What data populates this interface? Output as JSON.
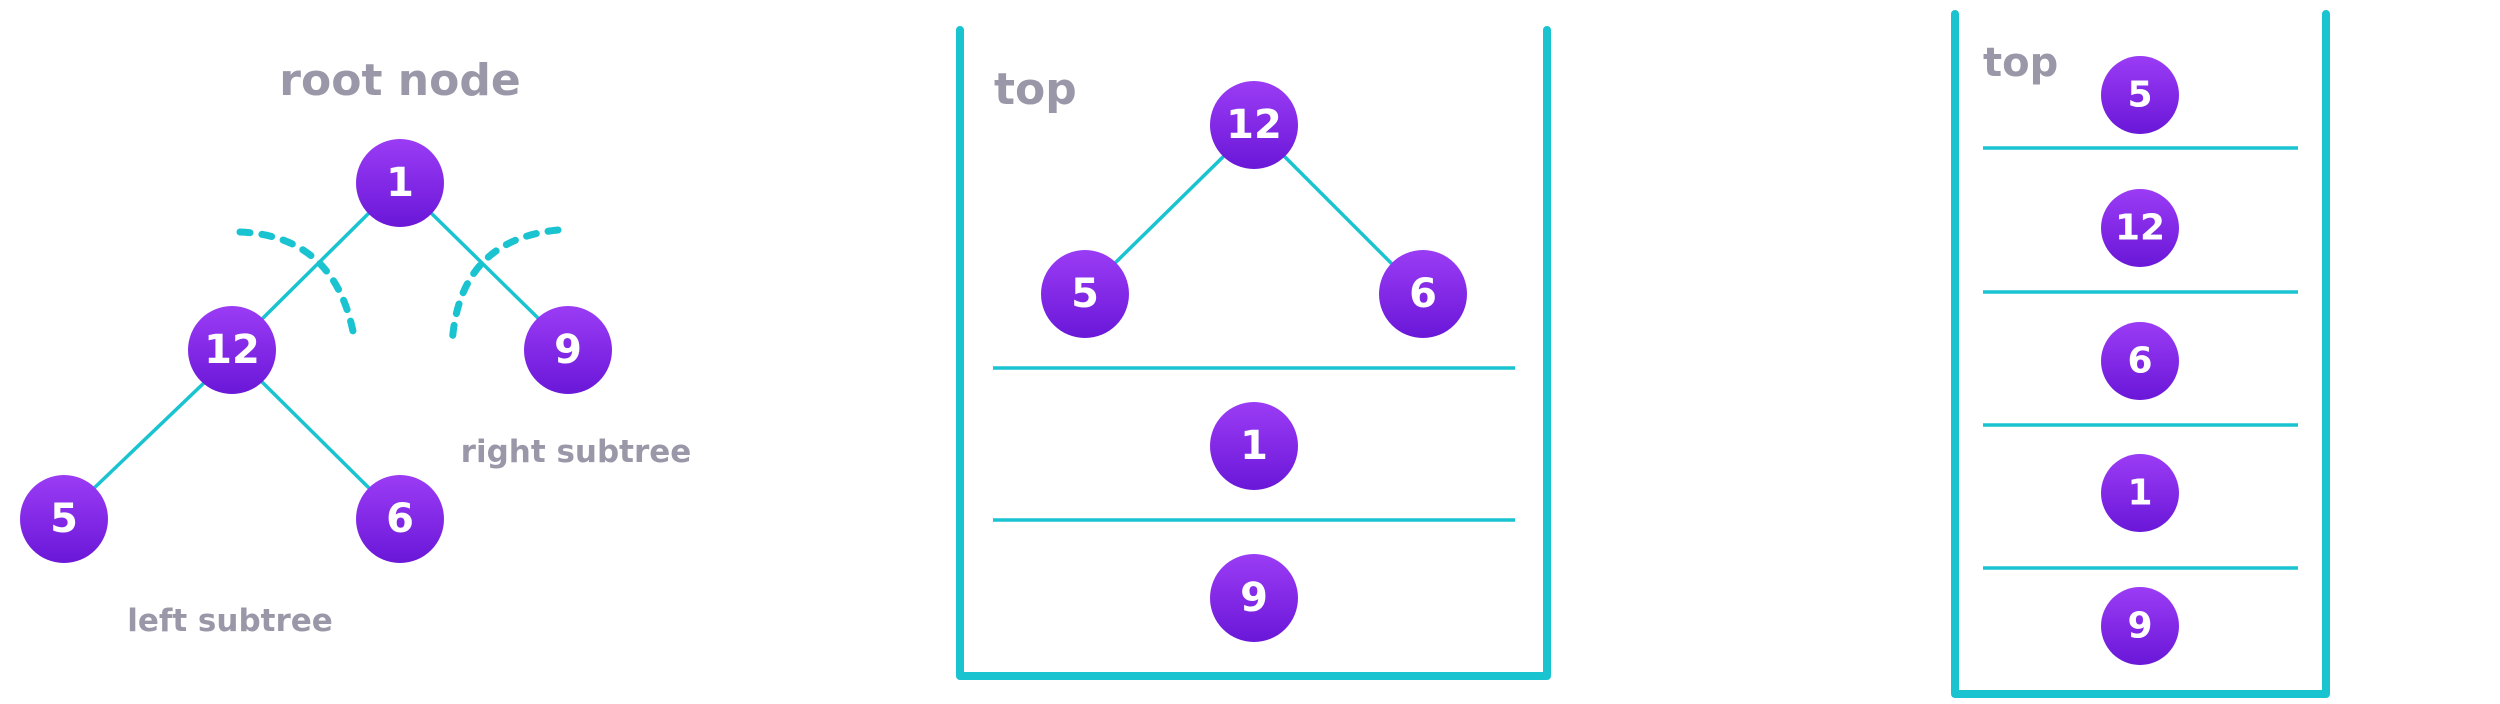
{
  "colors": {
    "node_top": "#9b3cf5",
    "node_bottom": "#6a17d8",
    "edge": "#19c3d0",
    "label": "#9a98a8"
  },
  "tree": {
    "title": "root node",
    "left_subtree_label": "left subtree",
    "right_subtree_label": "right subtree",
    "nodes": {
      "root": "1",
      "left": "12",
      "right": "9",
      "left_left": "5",
      "left_right": "6"
    }
  },
  "stack_1": {
    "top_label": "top",
    "subtree_nodes": {
      "root": "12",
      "left": "5",
      "right": "6"
    },
    "items": [
      "1",
      "9"
    ]
  },
  "stack_2": {
    "top_label": "top",
    "items": [
      "5",
      "12",
      "6",
      "1",
      "9"
    ]
  }
}
